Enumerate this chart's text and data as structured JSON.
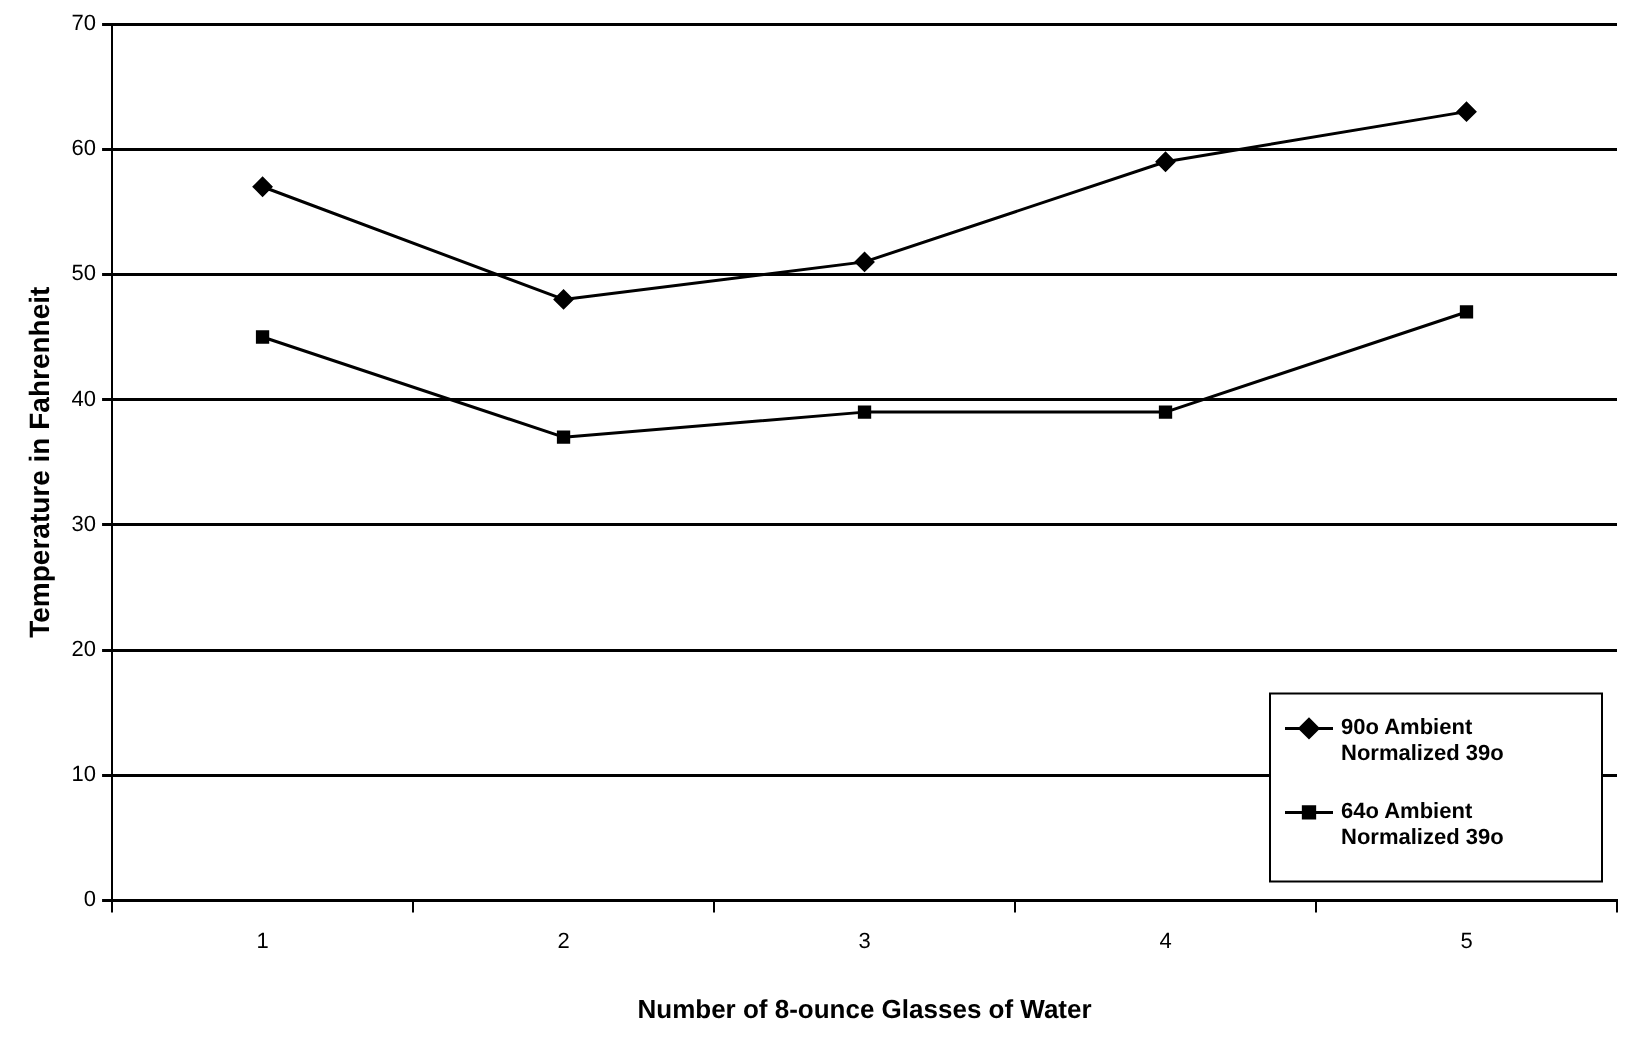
{
  "chart_data": {
    "type": "line",
    "xlabel": "Number of 8-ounce Glasses of Water",
    "ylabel": "Temperature in Fahrenheit",
    "categories": [
      "1",
      "2",
      "3",
      "4",
      "5"
    ],
    "series": [
      {
        "name": "90o Ambient Normalized 39o",
        "color": "#000000",
        "values": [
          57,
          48,
          51,
          59,
          63
        ],
        "marker": "diamond"
      },
      {
        "name": "64o Ambient Normalized 39o",
        "color": "#000000",
        "values": [
          45,
          37,
          39,
          39,
          47
        ],
        "marker": "square"
      }
    ],
    "ylim": [
      0,
      70
    ],
    "yticks": [
      0,
      10,
      20,
      30,
      40,
      50,
      60,
      70
    ],
    "grid": "y",
    "legend": "bottom right"
  }
}
